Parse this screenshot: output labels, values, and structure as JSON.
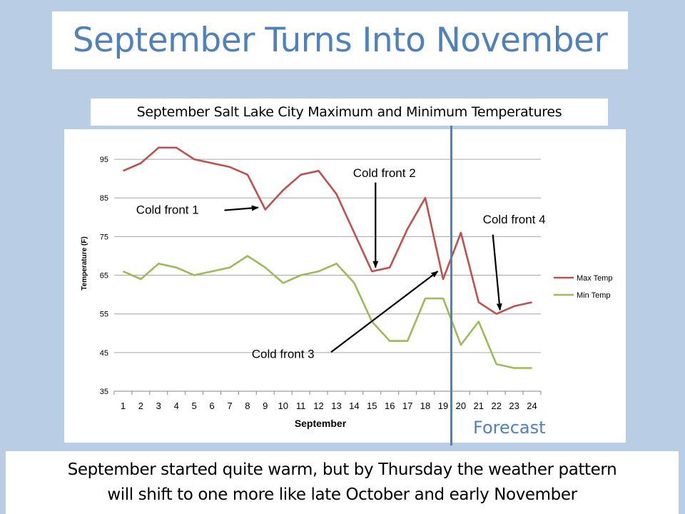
{
  "slide": {
    "title": "September Turns Into November",
    "subtitle": "September Salt Lake City Maximum and Minimum Temperatures",
    "caption_line1": "September started quite warm, but by Thursday the weather pattern",
    "caption_line2": "will shift to one more like late October and early November",
    "forecast_label": "Forecast"
  },
  "colors": {
    "background": "#b9cde5",
    "title": "#4f81bd",
    "max_temp": "#c0504d",
    "min_temp": "#9bbb59",
    "forecast_line": "#4f81bd"
  },
  "chart_data": {
    "type": "line",
    "title": "",
    "xlabel": "September",
    "ylabel": "Temperature (F)",
    "categories": [
      "1",
      "2",
      "3",
      "4",
      "5",
      "6",
      "7",
      "8",
      "9",
      "10",
      "11",
      "12",
      "13",
      "14",
      "15",
      "16",
      "17",
      "18",
      "19",
      "20",
      "21",
      "22",
      "23",
      "24"
    ],
    "ylim": [
      35,
      100
    ],
    "yticks": [
      35,
      45,
      55,
      65,
      75,
      85,
      95
    ],
    "grid": true,
    "legend_position": "right",
    "series": [
      {
        "name": "Max Temp",
        "color": "#c0504d",
        "values": [
          92,
          94,
          98,
          98,
          95,
          94,
          93,
          91,
          82,
          87,
          91,
          92,
          86,
          76,
          66,
          67,
          77,
          85,
          64,
          76,
          58,
          55,
          57,
          58
        ]
      },
      {
        "name": "Min Temp",
        "color": "#9bbb59",
        "values": [
          66,
          64,
          68,
          67,
          65,
          66,
          67,
          70,
          67,
          63,
          65,
          66,
          68,
          63,
          53,
          48,
          48,
          59,
          59,
          47,
          53,
          42,
          41,
          41
        ]
      }
    ],
    "forecast_starts_between": [
      "19",
      "20"
    ],
    "annotations": [
      {
        "text": "Cold front 1",
        "label_day": 3.5,
        "label_temp": 82,
        "arrow_from": [
          6.7,
          81.8
        ],
        "arrow_to": [
          8.6,
          82.5
        ]
      },
      {
        "text": "Cold front 2",
        "label_day": 15.7,
        "label_temp": 91.5,
        "arrow_from": [
          15.2,
          89
        ],
        "arrow_to": [
          15.2,
          67
        ]
      },
      {
        "text": "Cold front 3",
        "label_day": 10,
        "label_temp": 44.7,
        "arrow_from": [
          12.7,
          45.1
        ],
        "arrow_to": [
          18.7,
          66
        ]
      },
      {
        "text": "Cold front 4",
        "label_day": 23,
        "label_temp": 79.5,
        "arrow_from": [
          21.8,
          75.5
        ],
        "arrow_to": [
          22.2,
          56
        ]
      }
    ]
  }
}
